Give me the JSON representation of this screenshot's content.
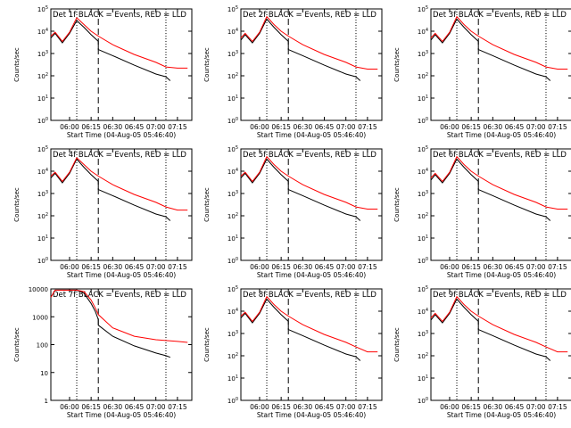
{
  "chart_data": [
    {
      "type": "line",
      "title": "Det 1f BLACK = Events, RED = LLD",
      "xlabel": "Start Time (04-Aug-05 05:46:40)",
      "ylabel": "Counts/sec",
      "ylim": [
        1,
        100000
      ],
      "ylog": true,
      "y_tick_labels": [
        "10^0",
        "10^1",
        "10^2",
        "10^3",
        "10^4",
        "10^5"
      ],
      "x_ticks": [
        "06:00",
        "06:15",
        "06:30",
        "06:45",
        "07:00",
        "07:15"
      ],
      "markers": {
        "dotted_lines_at": [
          "06:05",
          "07:07"
        ],
        "dashed_line_at": "06:20"
      },
      "series": [
        {
          "color": "#000000",
          "x": [
            "05:47",
            "05:50",
            "05:55",
            "06:00",
            "06:05",
            "06:10",
            "06:15",
            "06:20",
            "06:20",
            "06:30",
            "06:45",
            "07:00",
            "07:07",
            "07:10"
          ],
          "values": [
            5000,
            8000,
            3000,
            8000,
            30000,
            15000,
            7000,
            3500,
            1500,
            800,
            300,
            120,
            90,
            60
          ]
        },
        {
          "color": "#ff0000",
          "x": [
            "05:47",
            "05:50",
            "05:55",
            "06:00",
            "06:05",
            "06:10",
            "06:15",
            "06:20",
            "06:30",
            "06:45",
            "07:00",
            "07:07",
            "07:15",
            "07:22"
          ],
          "values": [
            6000,
            9000,
            3500,
            9000,
            40000,
            20000,
            10000,
            6000,
            2500,
            900,
            400,
            250,
            220,
            220
          ]
        }
      ]
    },
    {
      "type": "line",
      "title": "Det 2f BLACK = Events, RED = LLD",
      "xlabel": "Start Time (04-Aug-05 05:46:40)",
      "ylabel": "Counts/sec",
      "ylim": [
        1,
        100000
      ],
      "ylog": true,
      "y_tick_labels": [
        "10^0",
        "10^1",
        "10^2",
        "10^3",
        "10^4",
        "10^5"
      ],
      "x_ticks": [
        "06:00",
        "06:15",
        "06:30",
        "06:45",
        "07:00",
        "07:15"
      ],
      "markers": {
        "dotted_lines_at": [
          "06:05",
          "07:07"
        ],
        "dashed_line_at": "06:20"
      },
      "series": [
        {
          "color": "#000000",
          "x": [
            "05:47",
            "05:50",
            "05:55",
            "06:00",
            "06:05",
            "06:10",
            "06:15",
            "06:20",
            "06:20",
            "06:30",
            "06:45",
            "07:00",
            "07:07",
            "07:10"
          ],
          "values": [
            4000,
            7000,
            3000,
            8000,
            35000,
            15000,
            7000,
            3500,
            1500,
            800,
            300,
            120,
            90,
            60
          ]
        },
        {
          "color": "#ff0000",
          "x": [
            "05:47",
            "05:50",
            "05:55",
            "06:00",
            "06:05",
            "06:10",
            "06:15",
            "06:20",
            "06:30",
            "06:45",
            "07:00",
            "07:07",
            "07:15",
            "07:22"
          ],
          "values": [
            5000,
            8000,
            3500,
            9000,
            45000,
            20000,
            10000,
            6000,
            2500,
            900,
            400,
            250,
            200,
            200
          ]
        }
      ]
    },
    {
      "type": "line",
      "title": "Det 3f BLACK = Events, RED = LLD",
      "xlabel": "Start Time (04-Aug-05 05:46:40)",
      "ylabel": "Counts/sec",
      "ylim": [
        1,
        100000
      ],
      "ylog": true,
      "y_tick_labels": [
        "10^0",
        "10^1",
        "10^2",
        "10^3",
        "10^4",
        "10^5"
      ],
      "x_ticks": [
        "06:00",
        "06:15",
        "06:30",
        "06:45",
        "07:00",
        "07:15"
      ],
      "markers": {
        "dotted_lines_at": [
          "06:05",
          "07:07"
        ],
        "dashed_line_at": "06:20"
      },
      "series": [
        {
          "color": "#000000",
          "x": [
            "05:47",
            "05:50",
            "05:55",
            "06:00",
            "06:05",
            "06:10",
            "06:15",
            "06:20",
            "06:20",
            "06:30",
            "06:45",
            "07:00",
            "07:07",
            "07:10"
          ],
          "values": [
            4000,
            7000,
            3000,
            8000,
            35000,
            15000,
            7000,
            3500,
            1500,
            800,
            300,
            120,
            90,
            60
          ]
        },
        {
          "color": "#ff0000",
          "x": [
            "05:47",
            "05:50",
            "05:55",
            "06:00",
            "06:05",
            "06:10",
            "06:15",
            "06:20",
            "06:30",
            "06:45",
            "07:00",
            "07:07",
            "07:15",
            "07:22"
          ],
          "values": [
            5000,
            8000,
            3500,
            9000,
            45000,
            20000,
            10000,
            6000,
            2500,
            900,
            400,
            250,
            200,
            200
          ]
        }
      ]
    },
    {
      "type": "line",
      "title": "Det 4f BLACK = Events, RED = LLD",
      "xlabel": "Start Time (04-Aug-05 05:46:40)",
      "ylabel": "Counts/sec",
      "ylim": [
        1,
        100000
      ],
      "ylog": true,
      "y_tick_labels": [
        "10^0",
        "10^1",
        "10^2",
        "10^3",
        "10^4",
        "10^5"
      ],
      "x_ticks": [
        "06:00",
        "06:15",
        "06:30",
        "06:45",
        "07:00",
        "07:15"
      ],
      "markers": {
        "dotted_lines_at": [
          "06:05",
          "07:07"
        ],
        "dashed_line_at": "06:20"
      },
      "series": [
        {
          "color": "#000000",
          "x": [
            "05:47",
            "05:50",
            "05:55",
            "06:00",
            "06:05",
            "06:10",
            "06:15",
            "06:20",
            "06:20",
            "06:30",
            "06:45",
            "07:00",
            "07:07",
            "07:10"
          ],
          "values": [
            5000,
            8000,
            3000,
            8000,
            35000,
            15000,
            7000,
            3500,
            1500,
            800,
            300,
            120,
            90,
            60
          ]
        },
        {
          "color": "#ff0000",
          "x": [
            "05:47",
            "05:50",
            "05:55",
            "06:00",
            "06:05",
            "06:10",
            "06:15",
            "06:20",
            "06:30",
            "06:45",
            "07:00",
            "07:07",
            "07:15",
            "07:22"
          ],
          "values": [
            6000,
            9000,
            3500,
            9000,
            40000,
            20000,
            10000,
            6000,
            2500,
            900,
            400,
            250,
            180,
            180
          ]
        }
      ]
    },
    {
      "type": "line",
      "title": "Det 5f BLACK = Events, RED = LLD",
      "xlabel": "Start Time (04-Aug-05 05:46:40)",
      "ylabel": "Counts/sec",
      "ylim": [
        1,
        100000
      ],
      "ylog": true,
      "y_tick_labels": [
        "10^0",
        "10^1",
        "10^2",
        "10^3",
        "10^4",
        "10^5"
      ],
      "x_ticks": [
        "06:00",
        "06:15",
        "06:30",
        "06:45",
        "07:00",
        "07:15"
      ],
      "markers": {
        "dotted_lines_at": [
          "06:05",
          "07:07"
        ],
        "dashed_line_at": "06:20"
      },
      "series": [
        {
          "color": "#000000",
          "x": [
            "05:47",
            "05:50",
            "05:55",
            "06:00",
            "06:05",
            "06:10",
            "06:15",
            "06:20",
            "06:20",
            "06:30",
            "06:45",
            "07:00",
            "07:07",
            "07:10"
          ],
          "values": [
            5000,
            8000,
            3000,
            8000,
            35000,
            15000,
            7000,
            3500,
            1500,
            800,
            300,
            120,
            90,
            60
          ]
        },
        {
          "color": "#ff0000",
          "x": [
            "05:47",
            "05:50",
            "05:55",
            "06:00",
            "06:05",
            "06:10",
            "06:15",
            "06:20",
            "06:30",
            "06:45",
            "07:00",
            "07:07",
            "07:15",
            "07:22"
          ],
          "values": [
            6000,
            9000,
            3500,
            9000,
            45000,
            20000,
            10000,
            6000,
            2500,
            900,
            400,
            250,
            200,
            200
          ]
        }
      ]
    },
    {
      "type": "line",
      "title": "Det 6f BLACK = Events, RED = LLD",
      "xlabel": "Start Time (04-Aug-05 05:46:40)",
      "ylabel": "Counts/sec",
      "ylim": [
        1,
        100000
      ],
      "ylog": true,
      "y_tick_labels": [
        "10^0",
        "10^1",
        "10^2",
        "10^3",
        "10^4",
        "10^5"
      ],
      "x_ticks": [
        "06:00",
        "06:15",
        "06:30",
        "06:45",
        "07:00",
        "07:15"
      ],
      "markers": {
        "dotted_lines_at": [
          "06:05",
          "07:07"
        ],
        "dashed_line_at": "06:20"
      },
      "series": [
        {
          "color": "#000000",
          "x": [
            "05:47",
            "05:50",
            "05:55",
            "06:00",
            "06:05",
            "06:10",
            "06:15",
            "06:20",
            "06:20",
            "06:30",
            "06:45",
            "07:00",
            "07:07",
            "07:10"
          ],
          "values": [
            4000,
            7000,
            3000,
            8000,
            35000,
            15000,
            7000,
            3500,
            1500,
            800,
            300,
            120,
            90,
            60
          ]
        },
        {
          "color": "#ff0000",
          "x": [
            "05:47",
            "05:50",
            "05:55",
            "06:00",
            "06:05",
            "06:10",
            "06:15",
            "06:20",
            "06:30",
            "06:45",
            "07:00",
            "07:07",
            "07:15",
            "07:22"
          ],
          "values": [
            5000,
            8000,
            3500,
            9000,
            45000,
            20000,
            10000,
            6000,
            2500,
            900,
            400,
            250,
            200,
            200
          ]
        }
      ]
    },
    {
      "type": "line",
      "title": "Det 7f BLACK = Events, RED = LLD",
      "xlabel": "Start Time (04-Aug-05 05:46:40)",
      "ylabel": "Counts/sec",
      "ylim": [
        1,
        10000
      ],
      "ylog": true,
      "y_tick_labels": [
        "1",
        "10",
        "100",
        "1000",
        "10000"
      ],
      "x_ticks": [
        "06:00",
        "06:15",
        "06:30",
        "06:45",
        "07:00",
        "07:15"
      ],
      "markers": {
        "dotted_lines_at": [
          "06:05",
          "07:07"
        ],
        "dashed_line_at": "06:20"
      },
      "series": [
        {
          "color": "#000000",
          "x": [
            "05:47",
            "05:50",
            "05:55",
            "06:00",
            "06:05",
            "06:10",
            "06:15",
            "06:18",
            "06:20",
            "06:20",
            "06:30",
            "06:45",
            "07:00",
            "07:07",
            "07:10"
          ],
          "values": [
            5000,
            9000,
            9000,
            9000,
            9000,
            7000,
            3000,
            1500,
            800,
            500,
            200,
            90,
            50,
            40,
            35
          ]
        },
        {
          "color": "#ff0000",
          "x": [
            "05:47",
            "05:50",
            "05:55",
            "06:00",
            "06:05",
            "06:10",
            "06:15",
            "06:18",
            "06:20",
            "06:30",
            "06:45",
            "07:00",
            "07:07",
            "07:15",
            "07:22"
          ],
          "values": [
            5000,
            9000,
            9000,
            9000,
            9000,
            8000,
            4000,
            2000,
            1200,
            400,
            200,
            150,
            140,
            130,
            120
          ]
        }
      ]
    },
    {
      "type": "line",
      "title": "Det 8f BLACK = Events, RED = LLD",
      "xlabel": "Start Time (04-Aug-05 05:46:40)",
      "ylabel": "Counts/sec",
      "ylim": [
        1,
        100000
      ],
      "ylog": true,
      "y_tick_labels": [
        "10^0",
        "10^1",
        "10^2",
        "10^3",
        "10^4",
        "10^5"
      ],
      "x_ticks": [
        "06:00",
        "06:15",
        "06:30",
        "06:45",
        "07:00",
        "07:15"
      ],
      "markers": {
        "dotted_lines_at": [
          "06:05",
          "07:07"
        ],
        "dashed_line_at": "06:20"
      },
      "series": [
        {
          "color": "#000000",
          "x": [
            "05:47",
            "05:50",
            "05:55",
            "06:00",
            "06:05",
            "06:10",
            "06:15",
            "06:20",
            "06:20",
            "06:30",
            "06:45",
            "07:00",
            "07:07",
            "07:10"
          ],
          "values": [
            5000,
            8000,
            3000,
            8000,
            35000,
            15000,
            7000,
            3500,
            1500,
            800,
            300,
            120,
            90,
            60
          ]
        },
        {
          "color": "#ff0000",
          "x": [
            "05:47",
            "05:50",
            "05:55",
            "06:00",
            "06:05",
            "06:10",
            "06:15",
            "06:20",
            "06:30",
            "06:45",
            "07:00",
            "07:07",
            "07:15",
            "07:22"
          ],
          "values": [
            6000,
            9000,
            3500,
            9000,
            45000,
            20000,
            10000,
            6000,
            2500,
            900,
            400,
            250,
            150,
            150
          ]
        }
      ]
    },
    {
      "type": "line",
      "title": "Det 9f BLACK = Events, RED = LLD",
      "xlabel": "Start Time (04-Aug-05 05:46:40)",
      "ylabel": "Counts/sec",
      "ylim": [
        1,
        100000
      ],
      "ylog": true,
      "y_tick_labels": [
        "10^0",
        "10^1",
        "10^2",
        "10^3",
        "10^4",
        "10^5"
      ],
      "x_ticks": [
        "06:00",
        "06:15",
        "06:30",
        "06:45",
        "07:00",
        "07:15"
      ],
      "markers": {
        "dotted_lines_at": [
          "06:05",
          "07:07"
        ],
        "dashed_line_at": "06:20"
      },
      "series": [
        {
          "color": "#000000",
          "x": [
            "05:47",
            "05:50",
            "05:55",
            "06:00",
            "06:05",
            "06:10",
            "06:15",
            "06:20",
            "06:20",
            "06:30",
            "06:45",
            "07:00",
            "07:07",
            "07:10"
          ],
          "values": [
            4000,
            7000,
            3000,
            8000,
            35000,
            15000,
            7000,
            3500,
            1500,
            800,
            300,
            120,
            90,
            60
          ]
        },
        {
          "color": "#ff0000",
          "x": [
            "05:47",
            "05:50",
            "05:55",
            "06:00",
            "06:05",
            "06:10",
            "06:15",
            "06:20",
            "06:30",
            "06:45",
            "07:00",
            "07:07",
            "07:15",
            "07:22"
          ],
          "values": [
            5000,
            8000,
            3500,
            9000,
            45000,
            20000,
            10000,
            6000,
            2500,
            900,
            400,
            250,
            150,
            150
          ]
        }
      ]
    }
  ]
}
